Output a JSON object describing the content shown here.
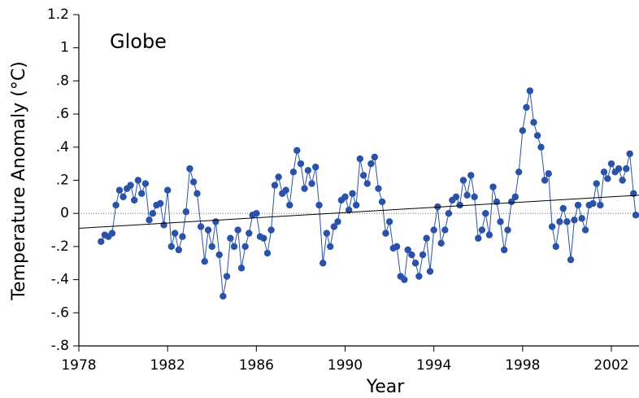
{
  "chart_data": {
    "type": "line",
    "annotation": "Globe",
    "xlabel": "Year",
    "ylabel": "Temperature Anomaly (°C)",
    "xlim": [
      1978,
      2003.25
    ],
    "ylim": [
      -0.8,
      1.2
    ],
    "xticks": [
      1978,
      1982,
      1986,
      1990,
      1994,
      1998,
      2002
    ],
    "yticks": [
      {
        "value": -0.8,
        "label": "-.8"
      },
      {
        "value": -0.6,
        "label": "-.6"
      },
      {
        "value": -0.4,
        "label": "-.4"
      },
      {
        "value": -0.2,
        "label": "-.2"
      },
      0,
      {
        "value": 0.2,
        "label": ".2"
      },
      {
        "value": 0.4,
        "label": ".4"
      },
      {
        "value": 0.6,
        "label": ".6"
      },
      {
        "value": 0.8,
        "label": ".8"
      },
      1,
      1.2
    ],
    "reference_line": 0,
    "trend": {
      "color": "#000000",
      "x": [
        1978,
        2003.25
      ],
      "values": [
        -0.09,
        0.11
      ]
    },
    "series": [
      {
        "color": "#2a52a8",
        "x": [
          1979,
          1979.17,
          1979.33,
          1979.5,
          1979.67,
          1979.83,
          1980,
          1980.17,
          1980.33,
          1980.5,
          1980.67,
          1980.83,
          1981,
          1981.17,
          1981.33,
          1981.5,
          1981.67,
          1981.83,
          1982,
          1982.17,
          1982.33,
          1982.5,
          1982.67,
          1982.83,
          1983,
          1983.17,
          1983.33,
          1983.5,
          1983.67,
          1983.83,
          1984,
          1984.17,
          1984.33,
          1984.5,
          1984.67,
          1984.83,
          1985,
          1985.17,
          1985.33,
          1985.5,
          1985.67,
          1985.83,
          1986,
          1986.17,
          1986.33,
          1986.5,
          1986.67,
          1986.83,
          1987,
          1987.17,
          1987.33,
          1987.5,
          1987.67,
          1987.83,
          1988,
          1988.17,
          1988.33,
          1988.5,
          1988.67,
          1988.83,
          1989,
          1989.17,
          1989.33,
          1989.5,
          1989.67,
          1989.83,
          1990,
          1990.17,
          1990.33,
          1990.5,
          1990.67,
          1990.83,
          1991,
          1991.17,
          1991.33,
          1991.5,
          1991.67,
          1991.83,
          1992,
          1992.17,
          1992.33,
          1992.5,
          1992.67,
          1992.83,
          1993,
          1993.17,
          1993.33,
          1993.5,
          1993.67,
          1993.83,
          1994,
          1994.17,
          1994.33,
          1994.5,
          1994.67,
          1994.83,
          1995,
          1995.17,
          1995.33,
          1995.5,
          1995.67,
          1995.83,
          1996,
          1996.17,
          1996.33,
          1996.5,
          1996.67,
          1996.83,
          1997,
          1997.17,
          1997.33,
          1997.5,
          1997.67,
          1997.83,
          1998,
          1998.17,
          1998.33,
          1998.5,
          1998.67,
          1998.83,
          1999,
          1999.17,
          1999.33,
          1999.5,
          1999.67,
          1999.83,
          2000,
          2000.17,
          2000.33,
          2000.5,
          2000.67,
          2000.83,
          2001,
          2001.17,
          2001.33,
          2001.5,
          2001.67,
          2001.83,
          2002,
          2002.17,
          2002.33,
          2002.5,
          2002.67,
          2002.83,
          2003,
          2003.1
        ],
        "values": [
          -0.17,
          -0.13,
          -0.14,
          -0.12,
          0.05,
          0.14,
          0.1,
          0.15,
          0.17,
          0.08,
          0.2,
          0.12,
          0.18,
          -0.04,
          0.0,
          0.05,
          0.06,
          -0.07,
          0.14,
          -0.2,
          -0.12,
          -0.22,
          -0.14,
          0.01,
          0.27,
          0.19,
          0.12,
          -0.08,
          -0.29,
          -0.1,
          -0.2,
          -0.05,
          -0.25,
          -0.5,
          -0.38,
          -0.15,
          -0.2,
          -0.1,
          -0.33,
          -0.2,
          -0.12,
          -0.01,
          0.0,
          -0.14,
          -0.15,
          -0.24,
          -0.1,
          0.17,
          0.22,
          0.12,
          0.14,
          0.05,
          0.25,
          0.38,
          0.3,
          0.15,
          0.26,
          0.18,
          0.28,
          0.05,
          -0.3,
          -0.12,
          -0.2,
          -0.08,
          -0.05,
          0.08,
          0.1,
          0.02,
          0.12,
          0.05,
          0.33,
          0.23,
          0.18,
          0.3,
          0.34,
          0.15,
          0.07,
          -0.12,
          -0.05,
          -0.21,
          -0.2,
          -0.38,
          -0.4,
          -0.22,
          -0.25,
          -0.3,
          -0.38,
          -0.25,
          -0.15,
          -0.35,
          -0.1,
          0.04,
          -0.18,
          -0.1,
          0.0,
          0.08,
          0.1,
          0.05,
          0.2,
          0.11,
          0.23,
          0.1,
          -0.15,
          -0.1,
          0.0,
          -0.13,
          0.16,
          0.07,
          -0.05,
          -0.22,
          -0.1,
          0.07,
          0.1,
          0.25,
          0.5,
          0.64,
          0.74,
          0.55,
          0.47,
          0.4,
          0.2,
          0.24,
          -0.08,
          -0.2,
          -0.05,
          0.03,
          -0.05,
          -0.28,
          -0.04,
          0.05,
          -0.03,
          -0.1,
          0.05,
          0.06,
          0.18,
          0.05,
          0.25,
          0.21,
          0.3,
          0.25,
          0.27,
          0.2,
          0.27,
          0.36,
          0.12,
          -0.01
        ]
      }
    ]
  }
}
